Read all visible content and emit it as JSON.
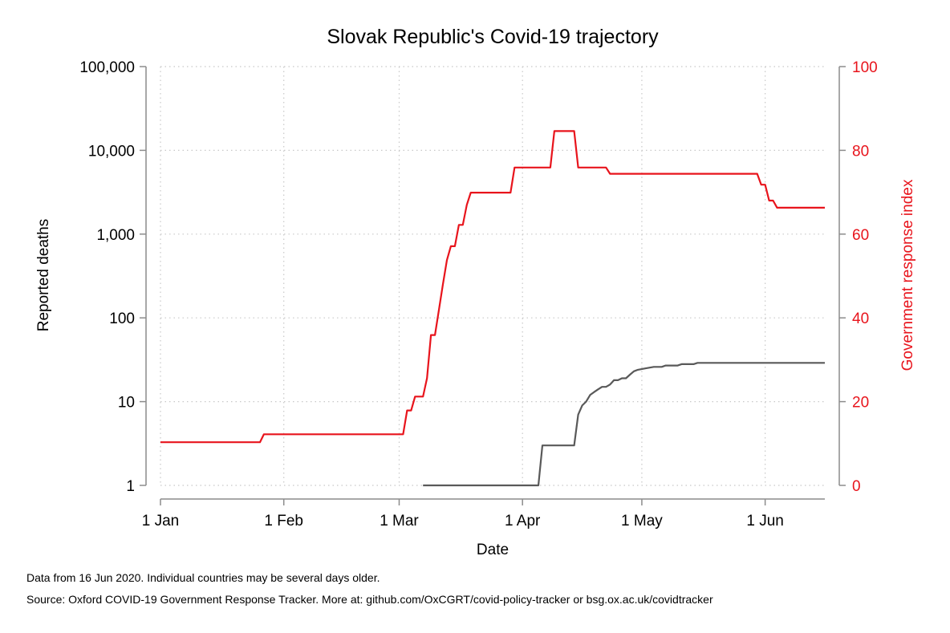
{
  "notes": {
    "data_date": "Data from 16 Jun 2020. Individual countries may be several days older.",
    "source": "Source: Oxford COVID-19 Government Response Tracker. More at: github.com/OxCGRT/covid-policy-tracker or bsg.ox.ac.uk/covidtracker"
  },
  "chart_data": {
    "type": "line",
    "title": "Slovak Republic's Covid-19 trajectory",
    "xlabel": "Date",
    "ylabel_left": "Reported deaths",
    "ylabel_right": "Government response index",
    "x_range": [
      "2020-01-01",
      "2020-06-16"
    ],
    "x_ticks": [
      {
        "label": "1 Jan",
        "date": "2020-01-01"
      },
      {
        "label": "1 Feb",
        "date": "2020-02-01"
      },
      {
        "label": "1 Mar",
        "date": "2020-03-01"
      },
      {
        "label": "1 Apr",
        "date": "2020-04-01"
      },
      {
        "label": "1 May",
        "date": "2020-05-01"
      },
      {
        "label": "1 Jun",
        "date": "2020-06-01"
      }
    ],
    "y_left": {
      "scale": "log",
      "range": [
        1,
        100000
      ],
      "ticks": [
        {
          "label": "1",
          "value": 1
        },
        {
          "label": "10",
          "value": 10
        },
        {
          "label": "100",
          "value": 100
        },
        {
          "label": "1,000",
          "value": 1000
        },
        {
          "label": "10,000",
          "value": 10000
        },
        {
          "label": "100,000",
          "value": 100000
        }
      ]
    },
    "y_right": {
      "scale": "linear",
      "range": [
        0,
        100
      ],
      "ticks": [
        {
          "label": "0",
          "value": 0
        },
        {
          "label": "20",
          "value": 20
        },
        {
          "label": "40",
          "value": 40
        },
        {
          "label": "60",
          "value": 60
        },
        {
          "label": "80",
          "value": 80
        },
        {
          "label": "100",
          "value": 100
        }
      ]
    },
    "grid": true,
    "legend": "none",
    "series": [
      {
        "axis": "right",
        "color": "#e8141c",
        "points": [
          [
            "2020-01-01",
            10.3
          ],
          [
            "2020-01-26",
            10.3
          ],
          [
            "2020-01-27",
            12.2
          ],
          [
            "2020-03-02",
            12.2
          ],
          [
            "2020-03-03",
            17.9
          ],
          [
            "2020-03-04",
            17.9
          ],
          [
            "2020-03-05",
            21.2
          ],
          [
            "2020-03-07",
            21.2
          ],
          [
            "2020-03-08",
            25.6
          ],
          [
            "2020-03-09",
            35.9
          ],
          [
            "2020-03-10",
            35.9
          ],
          [
            "2020-03-11",
            42.0
          ],
          [
            "2020-03-12",
            48.0
          ],
          [
            "2020-03-13",
            53.8
          ],
          [
            "2020-03-14",
            57.1
          ],
          [
            "2020-03-15",
            57.1
          ],
          [
            "2020-03-16",
            62.2
          ],
          [
            "2020-03-17",
            62.2
          ],
          [
            "2020-03-18",
            67.0
          ],
          [
            "2020-03-19",
            69.9
          ],
          [
            "2020-03-29",
            69.9
          ],
          [
            "2020-03-30",
            75.9
          ],
          [
            "2020-04-08",
            75.9
          ],
          [
            "2020-04-09",
            84.6
          ],
          [
            "2020-04-14",
            84.6
          ],
          [
            "2020-04-15",
            75.9
          ],
          [
            "2020-04-22",
            75.9
          ],
          [
            "2020-04-23",
            74.4
          ],
          [
            "2020-05-30",
            74.4
          ],
          [
            "2020-05-31",
            71.8
          ],
          [
            "2020-06-01",
            71.8
          ],
          [
            "2020-06-02",
            68.0
          ],
          [
            "2020-06-03",
            68.0
          ],
          [
            "2020-06-04",
            66.3
          ],
          [
            "2020-06-16",
            66.3
          ]
        ]
      },
      {
        "axis": "left",
        "color": "#595959",
        "points": [
          [
            "2020-03-07",
            1
          ],
          [
            "2020-04-05",
            1
          ],
          [
            "2020-04-06",
            3
          ],
          [
            "2020-04-14",
            3
          ],
          [
            "2020-04-15",
            7
          ],
          [
            "2020-04-16",
            9
          ],
          [
            "2020-04-17",
            10
          ],
          [
            "2020-04-18",
            12
          ],
          [
            "2020-04-19",
            13
          ],
          [
            "2020-04-20",
            14
          ],
          [
            "2020-04-21",
            15
          ],
          [
            "2020-04-22",
            15
          ],
          [
            "2020-04-23",
            16
          ],
          [
            "2020-04-24",
            18
          ],
          [
            "2020-04-25",
            18
          ],
          [
            "2020-04-26",
            19
          ],
          [
            "2020-04-27",
            19
          ],
          [
            "2020-04-28",
            21
          ],
          [
            "2020-04-29",
            23
          ],
          [
            "2020-04-30",
            24
          ],
          [
            "2020-05-02",
            25
          ],
          [
            "2020-05-04",
            26
          ],
          [
            "2020-05-06",
            26
          ],
          [
            "2020-05-07",
            27
          ],
          [
            "2020-05-10",
            27
          ],
          [
            "2020-05-11",
            28
          ],
          [
            "2020-05-14",
            28
          ],
          [
            "2020-05-15",
            29
          ],
          [
            "2020-06-16",
            29
          ]
        ]
      }
    ]
  }
}
